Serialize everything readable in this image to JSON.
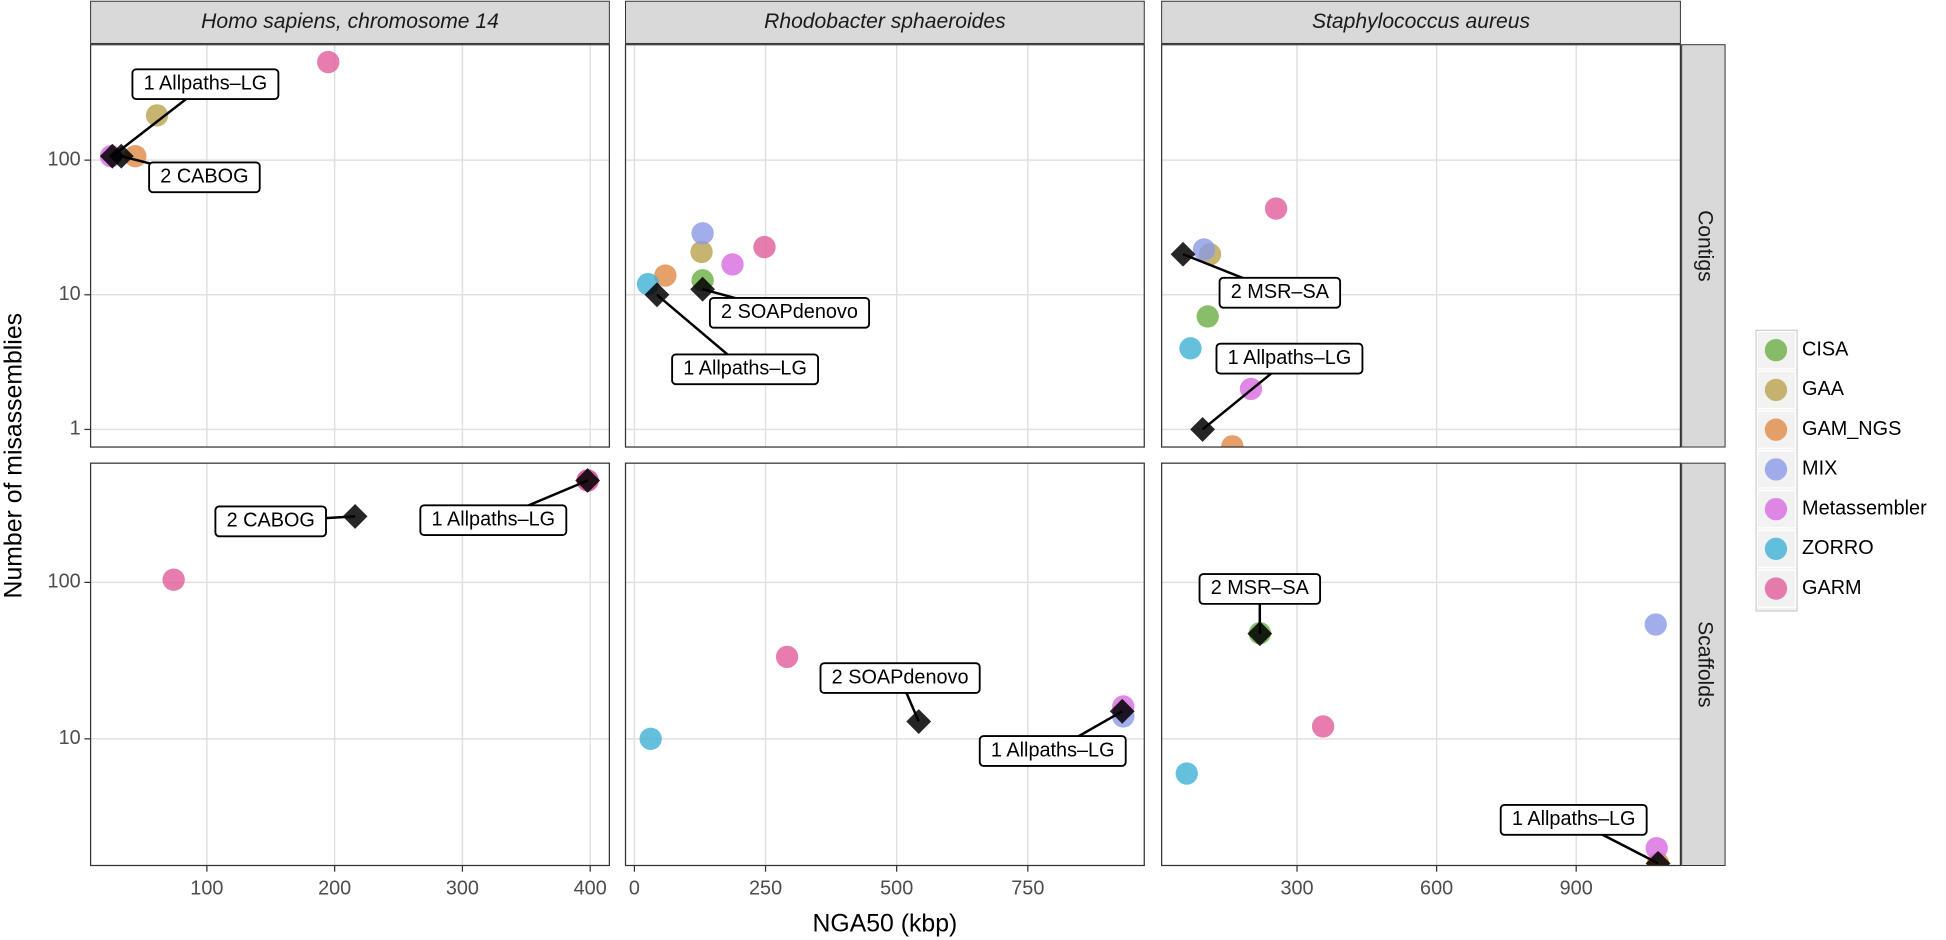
{
  "x_label": "NGA50 (kbp)",
  "y_label": "Number of misassemblies",
  "legend_position": "right",
  "column_labels": [
    "Homo sapiens, chromosome 14",
    "Rhodobacter sphaeroides",
    "Staphylococcus aureus"
  ],
  "row_labels": [
    "Contigs",
    "Scaffolds"
  ],
  "chart_data": [
    {
      "type": "scatter",
      "ylog": true,
      "grid": true,
      "xlim": [
        9,
        415
      ],
      "xticks": [
        100,
        200,
        300,
        400
      ],
      "ylim": [
        0.74,
        720
      ],
      "yticks": [
        1,
        10,
        100
      ],
      "series": [
        {
          "name": "CISA",
          "color": "#6aad45",
          "x": [],
          "values": []
        },
        {
          "name": "GAA",
          "color": "#b9a14d",
          "x": [
            61
          ],
          "values": [
            215
          ]
        },
        {
          "name": "GAM_NGS",
          "color": "#e08a45",
          "x": [
            44
          ],
          "values": [
            107
          ]
        },
        {
          "name": "MIX",
          "color": "#8b9ae6",
          "x": [],
          "values": []
        },
        {
          "name": "Metassembler",
          "color": "#d86ae0",
          "x": [
            25
          ],
          "values": [
            107
          ]
        },
        {
          "name": "ZORRO",
          "color": "#3fb0d6",
          "x": [],
          "values": []
        },
        {
          "name": "GARM",
          "color": "#e05c9a",
          "x": [
            195
          ],
          "values": [
            535
          ]
        }
      ],
      "annotations": [
        {
          "label": "1 Allpaths–LG",
          "x": 26,
          "y": 107
        },
        {
          "label": "2 CABOG",
          "x": 33,
          "y": 107
        }
      ]
    },
    {
      "type": "scatter",
      "ylog": true,
      "grid": true,
      "xlim": [
        -17,
        972
      ],
      "xticks": [
        0,
        250,
        500,
        750
      ],
      "ylim": [
        0.74,
        720
      ],
      "yticks": [
        1,
        10,
        100
      ],
      "series": [
        {
          "name": "CISA",
          "color": "#6aad45",
          "x": [
            130
          ],
          "values": [
            12.8
          ]
        },
        {
          "name": "GAA",
          "color": "#b9a14d",
          "x": [
            128
          ],
          "values": [
            20.8
          ]
        },
        {
          "name": "GAM_NGS",
          "color": "#e08a45",
          "x": [
            59
          ],
          "values": [
            13.9
          ]
        },
        {
          "name": "MIX",
          "color": "#8b9ae6",
          "x": [
            130
          ],
          "values": [
            28.6
          ]
        },
        {
          "name": "Metassembler",
          "color": "#d86ae0",
          "x": [
            187
          ],
          "values": [
            16.8
          ]
        },
        {
          "name": "ZORRO",
          "color": "#3fb0d6",
          "x": [
            26
          ],
          "values": [
            12
          ]
        },
        {
          "name": "GARM",
          "color": "#e05c9a",
          "x": [
            248
          ],
          "values": [
            22.6
          ]
        }
      ],
      "annotations": [
        {
          "label": "1 Allpaths–LG",
          "x": 43,
          "y": 10
        },
        {
          "label": "2 SOAPdenovo",
          "x": 130,
          "y": 11
        }
      ]
    },
    {
      "type": "scatter",
      "ylog": true,
      "grid": true,
      "xlim": [
        9,
        1124
      ],
      "xticks": [
        300,
        600,
        900
      ],
      "ylim": [
        0.74,
        720
      ],
      "yticks": [
        1,
        10,
        100
      ],
      "series": [
        {
          "name": "CISA",
          "color": "#6aad45",
          "x": [
            108
          ],
          "values": [
            6.9
          ]
        },
        {
          "name": "GAA",
          "color": "#b9a14d",
          "x": [
            113
          ],
          "values": [
            20
          ]
        },
        {
          "name": "GAM_NGS",
          "color": "#e08a45",
          "x": [
            161
          ],
          "values": [
            0.75
          ]
        },
        {
          "name": "MIX",
          "color": "#8b9ae6",
          "x": [
            100
          ],
          "values": [
            21.7
          ]
        },
        {
          "name": "Metassembler",
          "color": "#d86ae0",
          "x": [
            201
          ],
          "values": [
            2
          ]
        },
        {
          "name": "ZORRO",
          "color": "#3fb0d6",
          "x": [
            71
          ],
          "values": [
            4
          ]
        },
        {
          "name": "GARM",
          "color": "#e05c9a",
          "x": [
            255
          ],
          "values": [
            43.7
          ]
        }
      ],
      "annotations": [
        {
          "label": "1 Allpaths–LG",
          "x": 97,
          "y": 1
        },
        {
          "label": "2 MSR–SA",
          "x": 55,
          "y": 20
        }
      ]
    },
    {
      "type": "scatter",
      "ylog": true,
      "grid": true,
      "xlim": [
        9,
        415
      ],
      "xticks": [
        100,
        200,
        300,
        400
      ],
      "ylim": [
        1.55,
        578
      ],
      "yticks": [
        10,
        100
      ],
      "series": [
        {
          "name": "CISA",
          "color": "#6aad45",
          "x": [],
          "values": []
        },
        {
          "name": "GAA",
          "color": "#b9a14d",
          "x": [],
          "values": []
        },
        {
          "name": "GAM_NGS",
          "color": "#e08a45",
          "x": [],
          "values": []
        },
        {
          "name": "MIX",
          "color": "#8b9ae6",
          "x": [],
          "values": []
        },
        {
          "name": "Metassembler",
          "color": "#d86ae0",
          "x": [
            398
          ],
          "values": [
            448
          ]
        },
        {
          "name": "ZORRO",
          "color": "#3fb0d6",
          "x": [],
          "values": []
        },
        {
          "name": "GARM",
          "color": "#e05c9a",
          "x": [
            74,
            398
          ],
          "values": [
            104,
            448
          ]
        }
      ],
      "annotations": [
        {
          "label": "1 Allpaths–LG",
          "x": 398,
          "y": 448
        },
        {
          "label": "2 CABOG",
          "x": 216,
          "y": 264
        }
      ]
    },
    {
      "type": "scatter",
      "ylog": true,
      "grid": true,
      "xlim": [
        -17,
        972
      ],
      "xticks": [
        0,
        250,
        500,
        750
      ],
      "ylim": [
        1.55,
        578
      ],
      "yticks": [
        10,
        100
      ],
      "series": [
        {
          "name": "CISA",
          "color": "#6aad45",
          "x": [],
          "values": []
        },
        {
          "name": "GAA",
          "color": "#b9a14d",
          "x": [],
          "values": []
        },
        {
          "name": "GAM_NGS",
          "color": "#e08a45",
          "x": [],
          "values": []
        },
        {
          "name": "MIX",
          "color": "#8b9ae6",
          "x": [
            932
          ],
          "values": [
            13.9
          ]
        },
        {
          "name": "Metassembler",
          "color": "#d86ae0",
          "x": [
            932
          ],
          "values": [
            16.1
          ]
        },
        {
          "name": "ZORRO",
          "color": "#3fb0d6",
          "x": [
            31
          ],
          "values": [
            10
          ]
        },
        {
          "name": "GARM",
          "color": "#e05c9a",
          "x": [
            291
          ],
          "values": [
            33.4
          ]
        }
      ],
      "annotations": [
        {
          "label": "1 Allpaths–LG",
          "x": 930,
          "y": 15
        },
        {
          "label": "2 SOAPdenovo",
          "x": 542,
          "y": 12.9
        }
      ]
    },
    {
      "type": "scatter",
      "ylog": true,
      "grid": true,
      "xlim": [
        9,
        1124
      ],
      "xticks": [
        300,
        600,
        900
      ],
      "ylim": [
        1.55,
        578
      ],
      "yticks": [
        10,
        100
      ],
      "series": [
        {
          "name": "CISA",
          "color": "#6aad45",
          "x": [
            220
          ],
          "values": [
            47.3
          ]
        },
        {
          "name": "GAA",
          "color": "#b9a14d",
          "x": [],
          "values": []
        },
        {
          "name": "GAM_NGS",
          "color": "#e08a45",
          "x": [
            1076
          ],
          "values": [
            1.6
          ]
        },
        {
          "name": "MIX",
          "color": "#8b9ae6",
          "x": [
            1071
          ],
          "values": [
            53.8
          ]
        },
        {
          "name": "Metassembler",
          "color": "#d86ae0",
          "x": [
            1073
          ],
          "values": [
            2
          ]
        },
        {
          "name": "ZORRO",
          "color": "#3fb0d6",
          "x": [
            63
          ],
          "values": [
            6
          ]
        },
        {
          "name": "GARM",
          "color": "#e05c9a",
          "x": [
            356
          ],
          "values": [
            12
          ]
        }
      ],
      "annotations": [
        {
          "label": "1 Allpaths–LG",
          "x": 1076,
          "y": 1.6
        },
        {
          "label": "2 MSR–SA",
          "x": 220,
          "y": 47
        }
      ]
    }
  ]
}
